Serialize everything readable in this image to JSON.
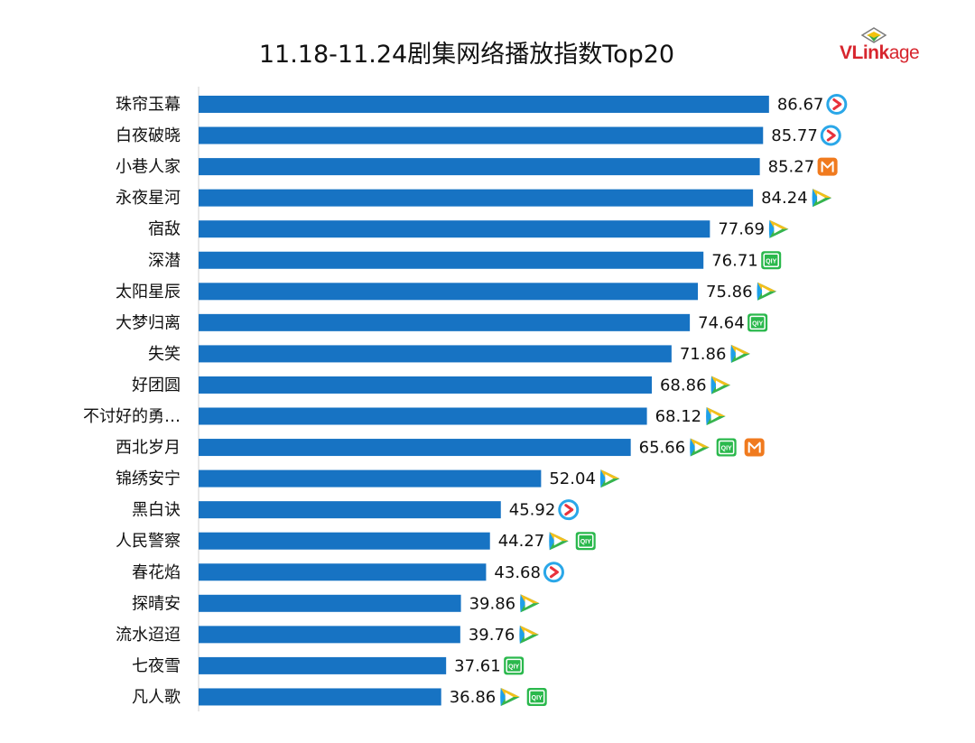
{
  "chart_data": {
    "type": "bar",
    "orientation": "horizontal",
    "title": "11.18-11.24剧集网络播放指数Top20",
    "xlabel": "",
    "ylabel": "",
    "xlim": [
      0,
      100
    ],
    "grid": false,
    "bar_color": "#1773c3",
    "categories": [
      "珠帘玉幕",
      "白夜破晓",
      "小巷人家",
      "永夜星河",
      "宿敌",
      "深潜",
      "太阳星辰",
      "大梦归离",
      "失笑",
      "好团圆",
      "不讨好的勇…",
      "西北岁月",
      "锦绣安宁",
      "黑白诀",
      "人民警察",
      "春花焰",
      "探晴安",
      "流水迢迢",
      "七夜雪",
      "凡人歌"
    ],
    "values": [
      86.67,
      85.77,
      85.27,
      84.24,
      77.69,
      76.71,
      75.86,
      74.64,
      71.86,
      68.86,
      68.12,
      65.66,
      52.04,
      45.92,
      44.27,
      43.68,
      39.86,
      39.76,
      37.61,
      36.86
    ],
    "value_labels": [
      "86.67",
      "85.77",
      "85.27",
      "84.24",
      "77.69",
      "76.71",
      "75.86",
      "74.64",
      "71.86",
      "68.86",
      "68.12",
      "65.66",
      "52.04",
      "45.92",
      "44.27",
      "43.68",
      "39.86",
      "39.76",
      "37.61",
      "36.86"
    ],
    "platforms": [
      [
        "youku"
      ],
      [
        "youku"
      ],
      [
        "mgtv"
      ],
      [
        "tencent"
      ],
      [
        "tencent"
      ],
      [
        "iqiyi"
      ],
      [
        "tencent"
      ],
      [
        "iqiyi"
      ],
      [
        "tencent"
      ],
      [
        "tencent"
      ],
      [
        "tencent"
      ],
      [
        "tencent",
        "iqiyi",
        "mgtv"
      ],
      [
        "tencent"
      ],
      [
        "youku"
      ],
      [
        "tencent",
        "iqiyi"
      ],
      [
        "youku"
      ],
      [
        "tencent"
      ],
      [
        "tencent"
      ],
      [
        "iqiyi"
      ],
      [
        "tencent",
        "iqiyi"
      ]
    ]
  },
  "brand": {
    "logo_text_v": "V",
    "logo_text_rest": "Link",
    "logo_text_tail": "age"
  },
  "icons": {
    "youku": "youku-play-icon",
    "tencent": "tencent-video-play-icon",
    "iqiyi": "iqiyi-icon",
    "mgtv": "mgtv-icon"
  }
}
